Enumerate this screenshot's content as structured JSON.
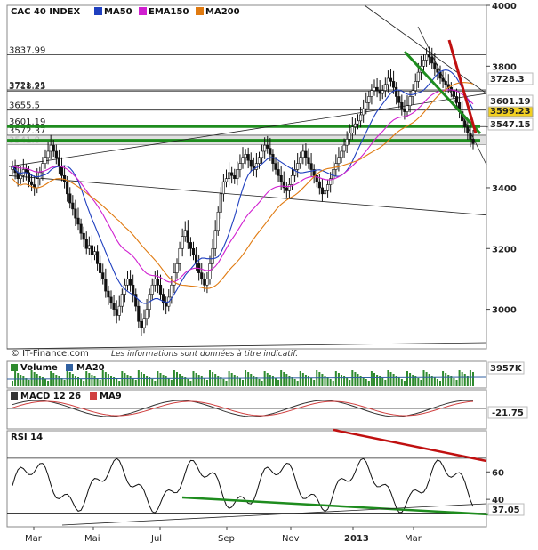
{
  "chart_data": [
    {
      "type": "candlestick",
      "title": "CAC 40 INDEX",
      "legend": [
        {
          "name": "MA50",
          "color": "#1f3fbf"
        },
        {
          "name": "EMA150",
          "color": "#d020d0"
        },
        {
          "name": "MA200",
          "color": "#e07a10"
        }
      ],
      "ylim": [
        2870,
        4000
      ],
      "yticks": [
        3000,
        3200,
        3400,
        3600,
        3800,
        4000
      ],
      "levels": [
        "3837.99",
        "3721.91",
        "3718.25",
        "3655.5",
        "3601.19",
        "3572.37",
        "3541.8"
      ],
      "right_labels": [
        {
          "text": "3728.3",
          "color": "#1f3fbf"
        },
        {
          "text": "3599.23",
          "color": "#111111",
          "bg": "#f2d020"
        },
        {
          "text": "3547.15",
          "color": "#e07a10"
        },
        {
          "text": "3601.19",
          "color": "#d020d0"
        }
      ],
      "months": [
        "Mar",
        "Mai",
        "Jul",
        "Sep",
        "Nov",
        "2013",
        "Mar"
      ],
      "close": [
        3470,
        3450,
        3430,
        3440,
        3460,
        3450,
        3420,
        3410,
        3400,
        3430,
        3450,
        3480,
        3500,
        3520,
        3540,
        3520,
        3500,
        3470,
        3440,
        3420,
        3380,
        3350,
        3330,
        3300,
        3280,
        3250,
        3230,
        3200,
        3210,
        3180,
        3190,
        3150,
        3120,
        3100,
        3060,
        3040,
        3020,
        3000,
        2980,
        3010,
        3050,
        3080,
        3100,
        3080,
        3050,
        3010,
        2960,
        2940,
        2970,
        3000,
        3050,
        3080,
        3100,
        3080,
        3050,
        3020,
        3010,
        3040,
        3080,
        3120,
        3150,
        3200,
        3240,
        3260,
        3220,
        3200,
        3180,
        3150,
        3120,
        3100,
        3080,
        3100,
        3150,
        3200,
        3260,
        3320,
        3380,
        3420,
        3430,
        3450,
        3440,
        3430,
        3460,
        3480,
        3500,
        3510,
        3490,
        3470,
        3460,
        3480,
        3500,
        3520,
        3540,
        3530,
        3510,
        3480,
        3460,
        3440,
        3420,
        3400,
        3390,
        3410,
        3440,
        3460,
        3480,
        3500,
        3520,
        3500,
        3480,
        3460,
        3440,
        3420,
        3400,
        3380,
        3390,
        3410,
        3430,
        3460,
        3480,
        3500,
        3520,
        3540,
        3560,
        3580,
        3600,
        3610,
        3620,
        3640,
        3660,
        3680,
        3700,
        3720,
        3730,
        3720,
        3710,
        3720,
        3740,
        3760,
        3750,
        3730,
        3700,
        3680,
        3660,
        3650,
        3670,
        3700,
        3720,
        3750,
        3780,
        3800,
        3820,
        3838,
        3830,
        3810,
        3790,
        3780,
        3760,
        3750,
        3740,
        3730,
        3720,
        3700,
        3680,
        3650,
        3620,
        3600,
        3580,
        3560,
        3545
      ],
      "ma50_label": "MA50",
      "ema150_label": "EMA150",
      "ma200_label": "MA200"
    },
    {
      "type": "bar",
      "title": "Volume",
      "legend": [
        {
          "name": "Volume",
          "color": "#2e8b2e"
        },
        {
          "name": "MA20",
          "color": "#3060a0"
        }
      ],
      "last_label": "3957K"
    },
    {
      "type": "line",
      "title": "MACD 12 26",
      "legend": [
        {
          "name": "MACD 12 26",
          "color": "#333333"
        },
        {
          "name": "MA9",
          "color": "#d04040"
        }
      ],
      "last_label": "-21.75"
    },
    {
      "type": "line",
      "title": "RSI 14",
      "yticks": [
        40,
        60
      ],
      "last_label": "37.05"
    }
  ],
  "credit": "© IT-Finance.com",
  "disclaimer": "Les informations sont données à titre indicatif."
}
